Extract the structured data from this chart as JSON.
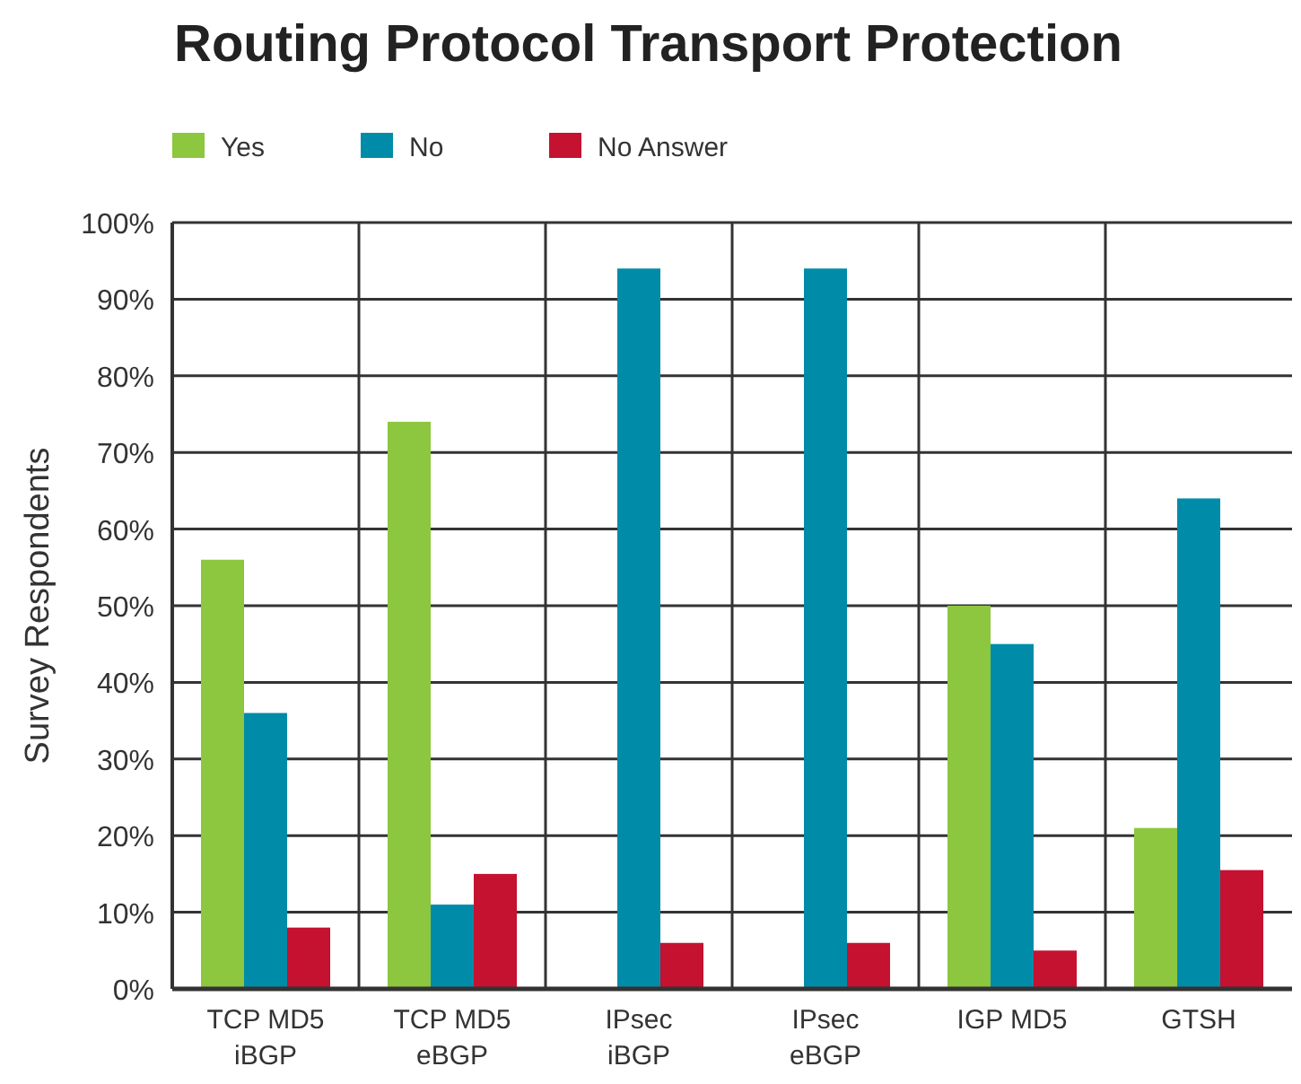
{
  "chart_data": {
    "type": "bar",
    "title": "Routing Protocol Transport Protection",
    "ylabel": "Survey Respondents",
    "categories": [
      "TCP MD5\niBGP",
      "TCP MD5\neBGP",
      "IPsec\niBGP",
      "IPsec\neBGP",
      "IGP MD5",
      "GTSH"
    ],
    "series": [
      {
        "name": "Yes",
        "color": "#8dc63f",
        "values": [
          56,
          74,
          0,
          0,
          50,
          21
        ]
      },
      {
        "name": "No",
        "color": "#008ca8",
        "values": [
          36,
          11,
          94,
          94,
          45,
          64
        ]
      },
      {
        "name": "No Answer",
        "color": "#c41230",
        "values": [
          8,
          15,
          6,
          6,
          5,
          15.5
        ]
      }
    ],
    "ylim": [
      0,
      100
    ],
    "yticks": [
      {
        "value": 0,
        "label": "0%"
      },
      {
        "value": 10,
        "label": "10%"
      },
      {
        "value": 20,
        "label": "20%"
      },
      {
        "value": 30,
        "label": "30%"
      },
      {
        "value": 40,
        "label": "40%"
      },
      {
        "value": 50,
        "label": "50%"
      },
      {
        "value": 60,
        "label": "60%"
      },
      {
        "value": 70,
        "label": "70%"
      },
      {
        "value": 80,
        "label": "80%"
      },
      {
        "value": 90,
        "label": "90%"
      },
      {
        "value": 100,
        "label": "100%"
      }
    ],
    "grid": true,
    "legend": "top left"
  }
}
